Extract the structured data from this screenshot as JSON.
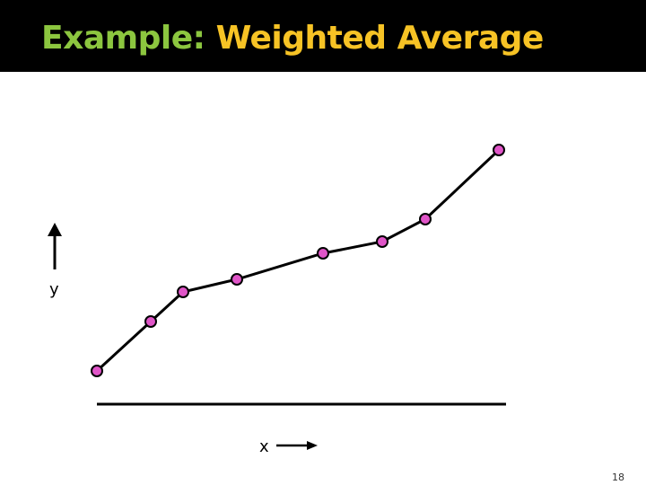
{
  "slide": {
    "title_part1": "Example:",
    "title_part2": "Weighted Average",
    "slide_number": "18",
    "colors": {
      "title_bar": "#000000",
      "title_part1": "#8cc63f",
      "title_part2": "#f7c325",
      "marker_fill": "#e055c8",
      "line": "#000000"
    }
  },
  "diagram": {
    "y_label": "y",
    "x_label": "x",
    "y_arrow_icon": "arrow-up-icon",
    "x_arrow_icon": "arrow-right-icon"
  }
}
